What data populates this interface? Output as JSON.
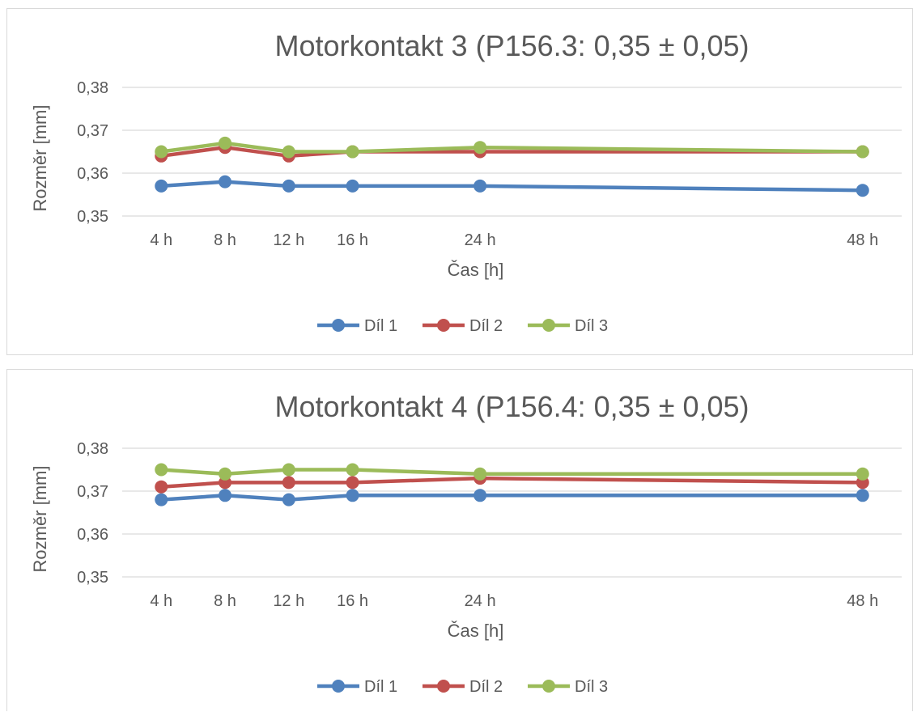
{
  "chart_data": [
    {
      "type": "line",
      "title": "Motorkontakt 3 (P156.3: 0,35 ± 0,05)",
      "xlabel": "Čas [h]",
      "ylabel": "Rozměr [mm]",
      "x": [
        4,
        8,
        12,
        16,
        24,
        48
      ],
      "categories": [
        "4 h",
        "8 h",
        "12 h",
        "16 h",
        "24 h",
        "48 h"
      ],
      "ylim": [
        0.35,
        0.38
      ],
      "yticks": [
        0.35,
        0.36,
        0.37,
        0.38
      ],
      "ytick_labels": [
        "0,35",
        "0,36",
        "0,37",
        "0,38"
      ],
      "grid": true,
      "legend": "bottom",
      "series": [
        {
          "name": "Díl 1",
          "color": "#4f81bd",
          "values": [
            0.357,
            0.358,
            0.357,
            0.357,
            0.357,
            0.356
          ]
        },
        {
          "name": "Díl 2",
          "color": "#c0504d",
          "values": [
            0.364,
            0.366,
            0.364,
            0.365,
            0.365,
            0.365
          ]
        },
        {
          "name": "Díl 3",
          "color": "#9bbb59",
          "values": [
            0.365,
            0.367,
            0.365,
            0.365,
            0.366,
            0.365
          ]
        }
      ]
    },
    {
      "type": "line",
      "title": "Motorkontakt 4 (P156.4: 0,35 ± 0,05)",
      "xlabel": "Čas [h]",
      "ylabel": "Rozměr [mm]",
      "x": [
        4,
        8,
        12,
        16,
        24,
        48
      ],
      "categories": [
        "4 h",
        "8 h",
        "12 h",
        "16 h",
        "24 h",
        "48 h"
      ],
      "ylim": [
        0.35,
        0.38
      ],
      "yticks": [
        0.35,
        0.36,
        0.37,
        0.38
      ],
      "ytick_labels": [
        "0,35",
        "0,36",
        "0,37",
        "0,38"
      ],
      "grid": true,
      "legend": "bottom",
      "series": [
        {
          "name": "Díl 1",
          "color": "#4f81bd",
          "values": [
            0.368,
            0.369,
            0.368,
            0.369,
            0.369,
            0.369
          ]
        },
        {
          "name": "Díl 2",
          "color": "#c0504d",
          "values": [
            0.371,
            0.372,
            0.372,
            0.372,
            0.373,
            0.372
          ]
        },
        {
          "name": "Díl 3",
          "color": "#9bbb59",
          "values": [
            0.375,
            0.374,
            0.375,
            0.375,
            0.374,
            0.374
          ]
        }
      ]
    }
  ]
}
